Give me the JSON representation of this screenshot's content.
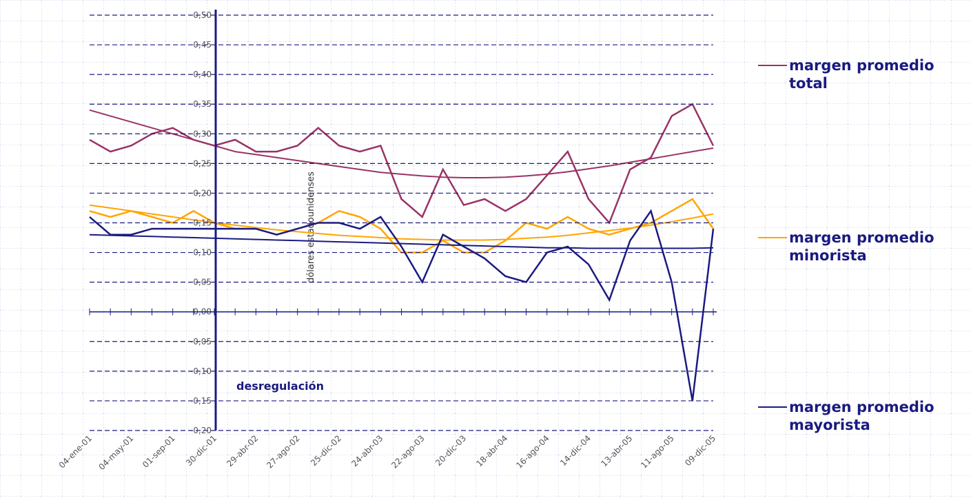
{
  "chart_data": {
    "type": "line",
    "y_label": "dólares estadounidenses",
    "annotation": "desregulación",
    "categories": [
      "04-ene-01",
      null,
      "04-may-01",
      null,
      "01-sep-01",
      null,
      "30-dic-01",
      null,
      "29-abr-02",
      null,
      "27-ago-02",
      null,
      "25-dic-02",
      null,
      "24-abr-03",
      null,
      "22-ago-03",
      null,
      "20-dic-03",
      null,
      "18-abr-04",
      null,
      "16-ago-04",
      null,
      "14-dic-04",
      null,
      "13-abr-05",
      null,
      "11-ago-05",
      null,
      "09-dic-05"
    ],
    "series": [
      {
        "name": "margen promedio total",
        "color": "#993366",
        "values": [
          0.29,
          0.27,
          0.28,
          0.3,
          0.31,
          0.29,
          0.28,
          0.29,
          0.27,
          0.27,
          0.28,
          0.31,
          0.28,
          0.27,
          0.28,
          0.19,
          0.16,
          0.24,
          0.18,
          0.19,
          0.17,
          0.19,
          0.23,
          0.27,
          0.19,
          0.15,
          0.24,
          0.26,
          0.33,
          0.35,
          0.28
        ],
        "trend": [
          0.34,
          0.33,
          0.32,
          0.31,
          0.3,
          0.29,
          0.28,
          0.27,
          0.265,
          0.26,
          0.255,
          0.25,
          0.245,
          0.24,
          0.235,
          0.232,
          0.229,
          0.227,
          0.226,
          0.226,
          0.227,
          0.229,
          0.232,
          0.236,
          0.241,
          0.246,
          0.252,
          0.258,
          0.264,
          0.27,
          0.276
        ]
      },
      {
        "name": "margen promedio minorista",
        "color": "#ffa500",
        "values": [
          0.17,
          0.16,
          0.17,
          0.16,
          0.15,
          0.17,
          0.15,
          0.14,
          0.14,
          0.13,
          0.14,
          0.15,
          0.17,
          0.16,
          0.14,
          0.1,
          0.1,
          0.12,
          0.1,
          0.1,
          0.12,
          0.15,
          0.14,
          0.16,
          0.14,
          0.13,
          0.14,
          0.15,
          0.17,
          0.19,
          0.14
        ],
        "trend": [
          0.18,
          0.175,
          0.17,
          0.165,
          0.16,
          0.155,
          0.15,
          0.146,
          0.142,
          0.138,
          0.135,
          0.132,
          0.129,
          0.127,
          0.125,
          0.123,
          0.122,
          0.121,
          0.121,
          0.121,
          0.122,
          0.124,
          0.126,
          0.129,
          0.133,
          0.137,
          0.141,
          0.146,
          0.152,
          0.158,
          0.165
        ]
      },
      {
        "name": "margen promedio mayorista",
        "color": "#1a1a80",
        "values": [
          0.16,
          0.13,
          0.13,
          0.14,
          0.14,
          0.14,
          0.14,
          0.14,
          0.14,
          0.13,
          0.14,
          0.15,
          0.15,
          0.14,
          0.16,
          0.11,
          0.05,
          0.13,
          0.11,
          0.09,
          0.06,
          0.05,
          0.1,
          0.11,
          0.08,
          0.02,
          0.12,
          0.17,
          0.05,
          -0.15,
          0.14
        ],
        "trend": [
          0.13,
          0.129,
          0.128,
          0.127,
          0.126,
          0.125,
          0.124,
          0.123,
          0.122,
          0.121,
          0.12,
          0.119,
          0.118,
          0.117,
          0.116,
          0.115,
          0.114,
          0.113,
          0.112,
          0.111,
          0.11,
          0.109,
          0.108,
          0.108,
          0.107,
          0.107,
          0.107,
          0.107,
          0.107,
          0.107,
          0.108
        ]
      }
    ],
    "ylim": [
      -0.2,
      0.5
    ],
    "yticks": [
      {
        "value": -0.2,
        "label": "-0,20"
      },
      {
        "value": -0.15,
        "label": "-0,15"
      },
      {
        "value": -0.1,
        "label": "-0,10"
      },
      {
        "value": -0.05,
        "label": "-0,05"
      },
      {
        "value": 0,
        "label": "0,00"
      },
      {
        "value": 0.05,
        "label": "0,05"
      },
      {
        "value": 0.1,
        "label": "0,10"
      },
      {
        "value": 0.15,
        "label": "0,15"
      },
      {
        "value": 0.2,
        "label": "0,20"
      },
      {
        "value": 0.25,
        "label": "0,25"
      },
      {
        "value": 0.3,
        "label": "0,30"
      },
      {
        "value": 0.35,
        "label": "0,35"
      },
      {
        "value": 0.4,
        "label": "0,40"
      },
      {
        "value": 0.45,
        "label": "0,45"
      },
      {
        "value": 0.5,
        "label": "0,50"
      }
    ],
    "grid": true
  }
}
